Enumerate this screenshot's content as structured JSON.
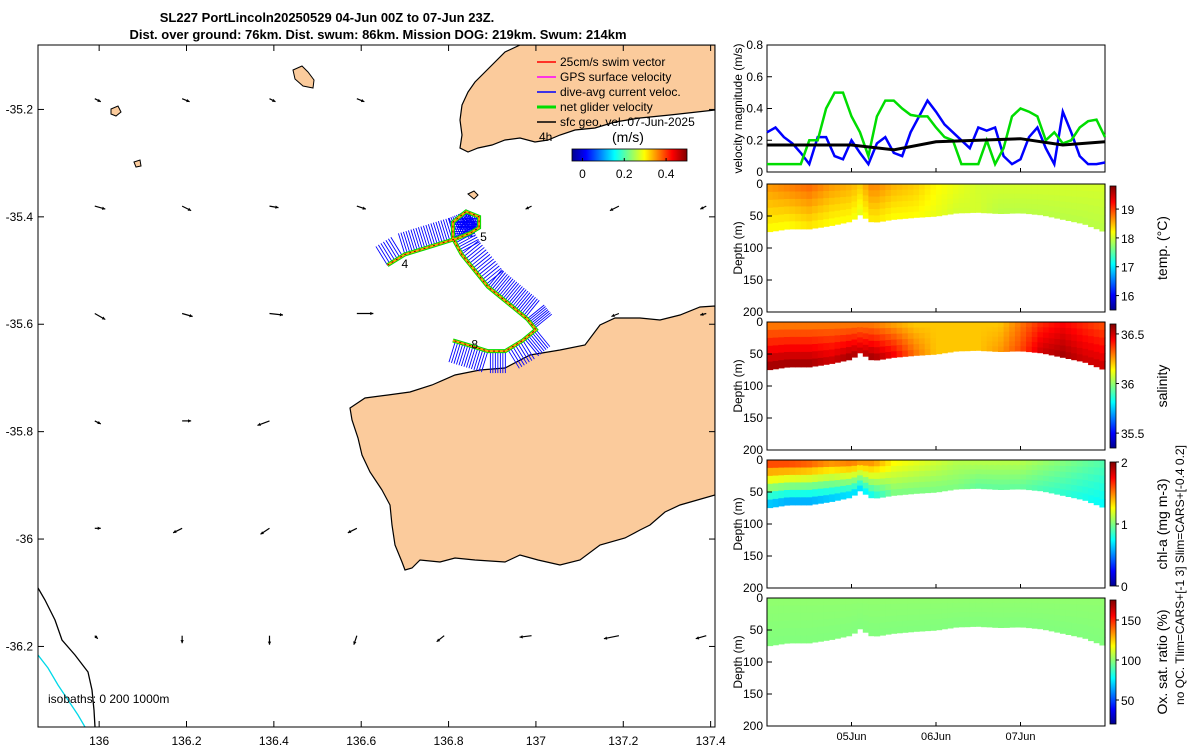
{
  "title_line1": "SL227 PortLincoln20250529 04-Jun 00Z to 07-Jun 23Z.",
  "title_line2": "Dist. over ground: 76km. Dist. swum: 86km. Mission DOG: 219km. Swum: 214km",
  "side_note": "no QC. Tlim=CARS+[-1 3] Slim=CARS+[-0.4 0.2]",
  "colors": {
    "land": "#fbcb9c",
    "swim": "#ff0000",
    "gps": "#ff00ff",
    "current": "#0000ff",
    "net": "#00dd00",
    "geo": "#000000",
    "iso200": "#000000",
    "iso1000": "#00d8e8"
  },
  "chart_data": [
    {
      "type": "map",
      "name": "glider-track-map",
      "xlim": [
        135.86,
        137.41
      ],
      "ylim": [
        -36.35,
        -35.08
      ],
      "x_ticks": [
        136,
        136.2,
        136.4,
        136.6,
        136.8,
        137,
        137.2,
        137.4
      ],
      "x_tick_labels": [
        "136",
        "136.2",
        "136.4",
        "136.6",
        "136.8",
        "137",
        "137.2",
        "137.4"
      ],
      "y_ticks": [
        -35.2,
        -35.4,
        -35.6,
        -35.8,
        -36,
        -36.2
      ],
      "y_tick_labels": [
        "-35.2",
        "-35.4",
        "-35.6",
        "-35.8",
        "-36",
        "-36.2"
      ],
      "legend": [
        {
          "label": "25cm/s swim vector",
          "color": "#ff0000"
        },
        {
          "label": "GPS surface velocity",
          "color": "#ff00ff"
        },
        {
          "label": "dive-avg current veloc.",
          "color": "#0000ff"
        },
        {
          "label": "net glider velocity",
          "color": "#00dd00"
        },
        {
          "label": "sfc geo. vel. 07-Jun-2025",
          "color": "#000000"
        }
      ],
      "scale_label": "4h",
      "colorbar": {
        "label": "(m/s)",
        "ticks": [
          0,
          0.2,
          0.4
        ],
        "tick_labels": [
          "0",
          "0.2",
          "0.4"
        ],
        "range": [
          -0.05,
          0.5
        ]
      },
      "isobaths_label": "isobaths: 0   200  1000m",
      "track": [
        [
          136.66,
          -35.49
        ],
        [
          136.7,
          -35.47
        ],
        [
          136.74,
          -35.46
        ],
        [
          136.78,
          -35.45
        ],
        [
          136.82,
          -35.44
        ],
        [
          136.85,
          -35.43
        ],
        [
          136.87,
          -35.42
        ],
        [
          136.87,
          -35.4
        ],
        [
          136.84,
          -35.39
        ],
        [
          136.81,
          -35.41
        ],
        [
          136.81,
          -35.44
        ],
        [
          136.83,
          -35.47
        ],
        [
          136.86,
          -35.5
        ],
        [
          136.89,
          -35.53
        ],
        [
          136.92,
          -35.55
        ],
        [
          136.95,
          -35.57
        ],
        [
          136.98,
          -35.59
        ],
        [
          137.0,
          -35.61
        ],
        [
          136.97,
          -35.63
        ],
        [
          136.93,
          -35.65
        ],
        [
          136.89,
          -35.65
        ],
        [
          136.85,
          -35.64
        ],
        [
          136.81,
          -35.63
        ]
      ],
      "track_labels": [
        {
          "text": "4",
          "x": 136.7,
          "y": -35.495
        },
        {
          "text": "5",
          "x": 136.88,
          "y": -35.445
        },
        {
          "text": "8",
          "x": 136.86,
          "y": -35.645
        }
      ],
      "geo_vectors": [
        {
          "x": 135.99,
          "y": -35.18,
          "u": 0.04,
          "v": -0.02
        },
        {
          "x": 136.19,
          "y": -35.18,
          "u": 0.05,
          "v": -0.02
        },
        {
          "x": 136.39,
          "y": -35.18,
          "u": 0.04,
          "v": -0.02
        },
        {
          "x": 136.59,
          "y": -35.18,
          "u": 0.05,
          "v": -0.02
        },
        {
          "x": 135.99,
          "y": -35.38,
          "u": 0.07,
          "v": -0.02
        },
        {
          "x": 136.19,
          "y": -35.38,
          "u": 0.06,
          "v": -0.03
        },
        {
          "x": 136.39,
          "y": -35.38,
          "u": 0.06,
          "v": -0.01
        },
        {
          "x": 136.59,
          "y": -35.38,
          "u": 0.06,
          "v": -0.02
        },
        {
          "x": 136.99,
          "y": -35.38,
          "u": -0.04,
          "v": -0.02
        },
        {
          "x": 137.19,
          "y": -35.38,
          "u": -0.06,
          "v": -0.03
        },
        {
          "x": 137.39,
          "y": -35.38,
          "u": -0.04,
          "v": -0.02
        },
        {
          "x": 135.99,
          "y": -35.58,
          "u": 0.07,
          "v": -0.04
        },
        {
          "x": 136.19,
          "y": -35.58,
          "u": 0.07,
          "v": -0.02
        },
        {
          "x": 136.39,
          "y": -35.58,
          "u": 0.09,
          "v": -0.01
        },
        {
          "x": 136.59,
          "y": -35.58,
          "u": 0.11,
          "v": 0.0
        },
        {
          "x": 137.19,
          "y": -35.58,
          "u": -0.05,
          "v": -0.02
        },
        {
          "x": 137.39,
          "y": -35.58,
          "u": -0.04,
          "v": -0.01
        },
        {
          "x": 135.99,
          "y": -35.78,
          "u": 0.04,
          "v": -0.02
        },
        {
          "x": 136.19,
          "y": -35.78,
          "u": 0.06,
          "v": 0.0
        },
        {
          "x": 136.39,
          "y": -35.78,
          "u": -0.08,
          "v": -0.03
        },
        {
          "x": 135.99,
          "y": -35.98,
          "u": 0.04,
          "v": 0.0
        },
        {
          "x": 136.19,
          "y": -35.98,
          "u": -0.06,
          "v": -0.03
        },
        {
          "x": 136.39,
          "y": -35.98,
          "u": -0.06,
          "v": -0.04
        },
        {
          "x": 136.59,
          "y": -35.98,
          "u": -0.06,
          "v": -0.03
        },
        {
          "x": 135.99,
          "y": -36.18,
          "u": 0.02,
          "v": -0.02
        },
        {
          "x": 136.19,
          "y": -36.18,
          "u": 0.0,
          "v": -0.05
        },
        {
          "x": 136.39,
          "y": -36.18,
          "u": 0.0,
          "v": -0.06
        },
        {
          "x": 136.59,
          "y": -36.18,
          "u": -0.02,
          "v": -0.06
        },
        {
          "x": 136.79,
          "y": -36.18,
          "u": -0.05,
          "v": -0.04
        },
        {
          "x": 136.99,
          "y": -36.18,
          "u": -0.08,
          "v": -0.01
        },
        {
          "x": 137.19,
          "y": -36.18,
          "u": -0.1,
          "v": -0.02
        },
        {
          "x": 137.39,
          "y": -36.18,
          "u": -0.07,
          "v": -0.02
        }
      ]
    },
    {
      "type": "line",
      "name": "velocity-magnitude",
      "ylabel": "velocity magnitude (m/s)",
      "xlim": [
        0,
        4
      ],
      "ylim": [
        0,
        0.8
      ],
      "y_ticks": [
        0,
        0.2,
        0.4,
        0.6,
        0.8
      ],
      "y_tick_labels": [
        "0",
        "0.2",
        "0.4",
        "0.6",
        "0.8"
      ],
      "series": [
        {
          "name": "dive-avg current",
          "color": "#0000ff",
          "x": [
            0,
            0.1,
            0.2,
            0.3,
            0.4,
            0.5,
            0.6,
            0.7,
            0.8,
            0.9,
            1.0,
            1.1,
            1.2,
            1.3,
            1.4,
            1.5,
            1.6,
            1.7,
            1.8,
            1.9,
            2.0,
            2.1,
            2.2,
            2.3,
            2.4,
            2.5,
            2.6,
            2.7,
            2.8,
            2.9,
            3.0,
            3.1,
            3.2,
            3.3,
            3.4,
            3.5,
            3.6,
            3.7,
            3.8,
            3.9,
            4.0
          ],
          "values": [
            0.25,
            0.28,
            0.22,
            0.18,
            0.12,
            0.05,
            0.22,
            0.22,
            0.1,
            0.08,
            0.2,
            0.12,
            0.05,
            0.18,
            0.22,
            0.12,
            0.1,
            0.25,
            0.35,
            0.45,
            0.38,
            0.3,
            0.25,
            0.2,
            0.15,
            0.28,
            0.26,
            0.28,
            0.1,
            0.05,
            0.08,
            0.22,
            0.28,
            0.15,
            0.05,
            0.38,
            0.25,
            0.1,
            0.05,
            0.05,
            0.06
          ]
        },
        {
          "name": "net glider velocity",
          "color": "#00dd00",
          "x": [
            0,
            0.1,
            0.2,
            0.3,
            0.4,
            0.5,
            0.6,
            0.7,
            0.8,
            0.9,
            1.0,
            1.1,
            1.2,
            1.3,
            1.4,
            1.5,
            1.6,
            1.7,
            1.8,
            1.9,
            2.0,
            2.1,
            2.2,
            2.3,
            2.4,
            2.5,
            2.6,
            2.7,
            2.8,
            2.9,
            3.0,
            3.1,
            3.2,
            3.3,
            3.4,
            3.5,
            3.6,
            3.7,
            3.8,
            3.9,
            4.0
          ],
          "values": [
            0.05,
            0.05,
            0.05,
            0.05,
            0.05,
            0.2,
            0.2,
            0.4,
            0.5,
            0.5,
            0.35,
            0.25,
            0.1,
            0.35,
            0.45,
            0.45,
            0.4,
            0.36,
            0.35,
            0.35,
            0.28,
            0.22,
            0.2,
            0.05,
            0.05,
            0.05,
            0.2,
            0.05,
            0.15,
            0.35,
            0.4,
            0.38,
            0.35,
            0.2,
            0.25,
            0.18,
            0.2,
            0.28,
            0.32,
            0.33,
            0.22
          ]
        },
        {
          "name": "sfc geo. vel.",
          "color": "#000000",
          "x": [
            0,
            0.5,
            1.0,
            1.5,
            2.0,
            2.5,
            3.0,
            3.5,
            4.0
          ],
          "values": [
            0.17,
            0.17,
            0.17,
            0.14,
            0.19,
            0.2,
            0.21,
            0.17,
            0.19
          ]
        }
      ]
    },
    {
      "type": "heatmap",
      "name": "temperature-section",
      "ylabel": "Depth (m)",
      "colorbar_label": "temp. (°C)",
      "ylim": [
        0,
        200
      ],
      "y_ticks": [
        0,
        50,
        100,
        150,
        200
      ],
      "y_tick_labels": [
        "0",
        "50",
        "100",
        "150",
        "200"
      ],
      "clim": [
        15.5,
        19.8
      ],
      "colorbar_ticks": [
        16,
        17,
        18,
        19
      ],
      "colorbar_tick_labels": [
        "16",
        "17",
        "18",
        "19"
      ],
      "profile_x": [
        0,
        0.25,
        0.5,
        0.75,
        1.0,
        1.1,
        1.25,
        1.5,
        1.75,
        2.0,
        2.25,
        2.5,
        2.75,
        3.0,
        3.25,
        3.5,
        3.75,
        4.0
      ],
      "profile_depth": [
        75,
        70,
        70,
        65,
        58,
        48,
        60,
        55,
        52,
        50,
        45,
        44,
        46,
        45,
        48,
        55,
        62,
        75
      ],
      "surface_values": [
        18.6,
        18.7,
        18.8,
        18.6,
        18.5,
        18.4,
        18.7,
        18.5,
        18.4,
        18.2,
        18.1,
        18.0,
        18.0,
        18.0,
        18.0,
        18.0,
        18.0,
        18.0
      ],
      "deep_values": [
        18.2,
        18.2,
        18.3,
        18.2,
        18.2,
        18.1,
        18.3,
        18.2,
        18.2,
        18.1,
        18.0,
        18.0,
        17.9,
        17.9,
        17.9,
        17.9,
        17.9,
        17.9
      ]
    },
    {
      "type": "heatmap",
      "name": "salinity-section",
      "ylabel": "Depth (m)",
      "colorbar_label": "salinity",
      "ylim": [
        0,
        200
      ],
      "y_ticks": [
        0,
        50,
        100,
        150,
        200
      ],
      "y_tick_labels": [
        "0",
        "50",
        "100",
        "150",
        "200"
      ],
      "clim": [
        35.35,
        36.6
      ],
      "colorbar_ticks": [
        35.5,
        36,
        36.5
      ],
      "colorbar_tick_labels": [
        "35.5",
        "36",
        "36.5"
      ],
      "profile_x": [
        0,
        0.25,
        0.5,
        0.75,
        1.0,
        1.1,
        1.25,
        1.5,
        1.75,
        2.0,
        2.25,
        2.5,
        2.75,
        3.0,
        3.25,
        3.5,
        3.75,
        4.0
      ],
      "profile_depth": [
        75,
        70,
        70,
        65,
        58,
        48,
        60,
        55,
        52,
        50,
        45,
        44,
        46,
        45,
        48,
        55,
        62,
        75
      ],
      "surface_values": [
        36.3,
        36.3,
        36.3,
        36.3,
        36.3,
        36.3,
        36.3,
        36.25,
        36.2,
        36.2,
        36.2,
        36.2,
        36.2,
        36.3,
        36.4,
        36.45,
        36.4,
        36.35
      ],
      "deep_values": [
        36.55,
        36.55,
        36.55,
        36.5,
        36.55,
        36.5,
        36.55,
        36.45,
        36.3,
        36.2,
        36.2,
        36.2,
        36.25,
        36.35,
        36.5,
        36.55,
        36.5,
        36.5
      ]
    },
    {
      "type": "heatmap",
      "name": "chlorophyll-section",
      "ylabel": "Depth (m)",
      "colorbar_label": "chl-a (mg m-3)",
      "ylim": [
        0,
        200
      ],
      "y_ticks": [
        0,
        50,
        100,
        150,
        200
      ],
      "y_tick_labels": [
        "0",
        "50",
        "100",
        "150",
        "200"
      ],
      "clim": [
        0,
        2
      ],
      "colorbar_ticks": [
        0,
        1,
        2
      ],
      "colorbar_tick_labels": [
        "0",
        "1",
        "2"
      ],
      "profile_x": [
        0,
        0.25,
        0.5,
        0.75,
        1.0,
        1.1,
        1.25,
        1.5,
        1.75,
        2.0,
        2.25,
        2.5,
        2.75,
        3.0,
        3.25,
        3.5,
        3.75,
        4.0
      ],
      "profile_depth": [
        75,
        70,
        70,
        65,
        58,
        48,
        60,
        55,
        52,
        50,
        45,
        44,
        46,
        45,
        48,
        55,
        62,
        75
      ],
      "surface_values": [
        1.6,
        1.6,
        1.55,
        1.45,
        1.5,
        1.45,
        1.45,
        1.25,
        1.2,
        1.15,
        1.1,
        1.1,
        1.1,
        1.1,
        1.05,
        1.0,
        0.95,
        0.9
      ],
      "deep_values": [
        0.65,
        0.6,
        0.6,
        0.65,
        0.7,
        0.7,
        0.8,
        1.0,
        1.0,
        1.0,
        1.0,
        0.95,
        0.95,
        0.95,
        0.9,
        0.85,
        0.8,
        0.75
      ]
    },
    {
      "type": "heatmap",
      "name": "oxygen-section",
      "ylabel": "Depth (m)",
      "colorbar_label": "Ox. sat. ratio (%)",
      "ylim": [
        0,
        200
      ],
      "y_ticks": [
        0,
        50,
        100,
        150,
        200
      ],
      "y_tick_labels": [
        "0",
        "50",
        "100",
        "150",
        "200"
      ],
      "clim": [
        20,
        175
      ],
      "colorbar_ticks": [
        50,
        100,
        150
      ],
      "colorbar_tick_labels": [
        "50",
        "100",
        "150"
      ],
      "profile_x": [
        0,
        0.25,
        0.5,
        0.75,
        1.0,
        1.1,
        1.25,
        1.5,
        1.75,
        2.0,
        2.25,
        2.5,
        2.75,
        3.0,
        3.25,
        3.5,
        3.75,
        4.0
      ],
      "profile_depth": [
        75,
        70,
        70,
        65,
        58,
        48,
        60,
        55,
        52,
        50,
        45,
        44,
        46,
        45,
        48,
        55,
        62,
        75
      ],
      "surface_values": [
        100,
        100,
        100,
        100,
        100,
        100,
        100,
        100,
        100,
        100,
        100,
        100,
        100,
        100,
        100,
        100,
        100,
        100
      ],
      "deep_values": [
        98,
        98,
        98,
        98,
        98,
        98,
        98,
        98,
        98,
        98,
        98,
        98,
        98,
        98,
        98,
        98,
        98,
        98
      ]
    }
  ],
  "time_axis": {
    "xlim": [
      0,
      4
    ],
    "ticks": [
      1,
      2,
      3
    ],
    "tick_labels": [
      "05Jun",
      "06Jun",
      "07Jun"
    ]
  }
}
